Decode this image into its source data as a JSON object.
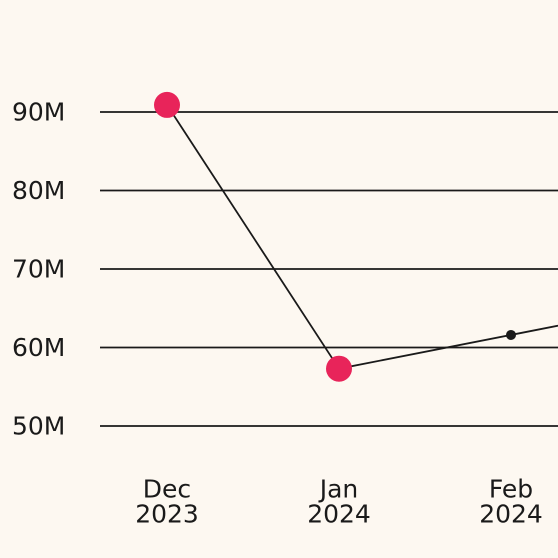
{
  "chart_data": {
    "type": "line",
    "title": "",
    "xlabel": "",
    "ylabel": "",
    "categories": [
      "Dec 2023",
      "Jan 2024",
      "Feb 2024"
    ],
    "x_tick_labels": [
      [
        "Dec",
        "2023"
      ],
      [
        "Jan",
        "2024"
      ],
      [
        "Feb",
        "2024"
      ]
    ],
    "y_ticks": [
      50,
      60,
      70,
      80,
      90
    ],
    "y_tick_labels": [
      "50M",
      "60M",
      "70M",
      "80M",
      "90M"
    ],
    "ylim": [
      50,
      90
    ],
    "y_unit": "M",
    "grid": "horizontal",
    "series": [
      {
        "values": [
          90.9,
          57.3,
          61.6
        ],
        "highlighted": [
          true,
          true,
          false
        ],
        "continues_beyond_right_edge": true
      }
    ],
    "colors": {
      "background": "#fdf8f1",
      "line": "#1a1a1a",
      "highlight_marker": "#e8245a",
      "marker": "#1a1a1a",
      "grid": "#1a1a1a"
    }
  }
}
